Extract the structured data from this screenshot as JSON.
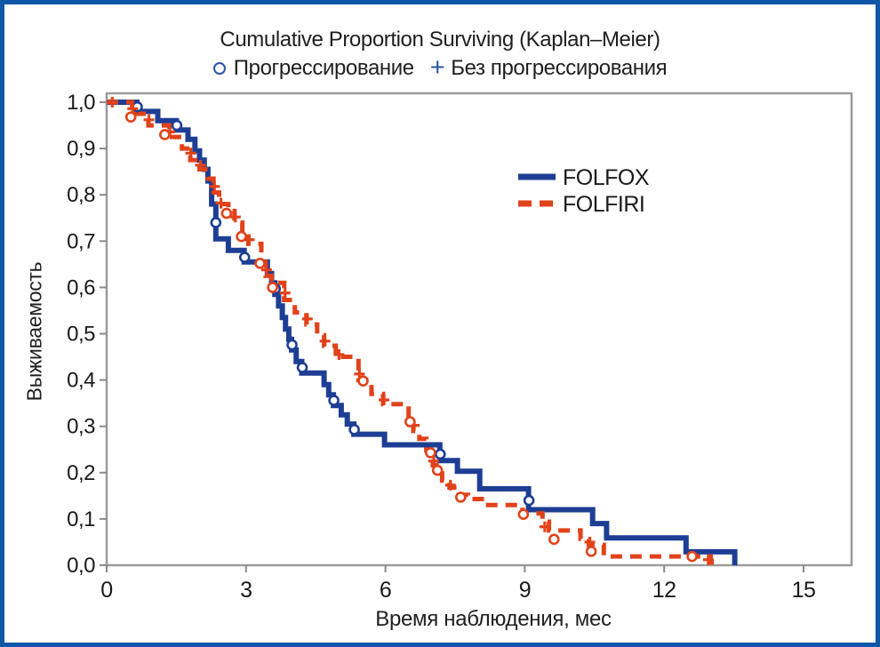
{
  "chart_data": {
    "type": "line",
    "chart_kind": "kaplan-meier-step",
    "title": "Cumulative Proportion Surviving (Kaplan–Meier)",
    "subtitle": {
      "circle_label": "Прогрессирование",
      "plus_glyph": "+",
      "plus_label": "Без прогрессирования"
    },
    "xlabel": "Время наблюдения, мес",
    "ylabel": "Выживаемость",
    "xlim": [
      0,
      16
    ],
    "ylim": [
      0,
      1.02
    ],
    "grid": false,
    "xticks": [
      {
        "value": 0,
        "label": "0"
      },
      {
        "value": 3,
        "label": "3"
      },
      {
        "value": 6,
        "label": "6"
      },
      {
        "value": 9,
        "label": "9"
      },
      {
        "value": 12,
        "label": "12"
      },
      {
        "value": 15,
        "label": "15"
      }
    ],
    "yticks": [
      {
        "value": 0.0,
        "label": "0,0"
      },
      {
        "value": 0.1,
        "label": "0,1"
      },
      {
        "value": 0.2,
        "label": "0,2"
      },
      {
        "value": 0.3,
        "label": "0,3"
      },
      {
        "value": 0.4,
        "label": "0,4"
      },
      {
        "value": 0.5,
        "label": "0,5"
      },
      {
        "value": 0.6,
        "label": "0,6"
      },
      {
        "value": 0.7,
        "label": "0,7"
      },
      {
        "value": 0.8,
        "label": "0,8"
      },
      {
        "value": 0.9,
        "label": "0,9"
      },
      {
        "value": 1.0,
        "label": "1,0"
      }
    ],
    "legend": {
      "position": "inside-center-top"
    },
    "series": [
      {
        "name": "FOLFOX",
        "color": "#1d3e94",
        "line_style": "solid",
        "end_time": 13.52,
        "steps": [
          [
            0,
            1.0
          ],
          [
            0.65,
            0.98
          ],
          [
            1.1,
            0.96
          ],
          [
            1.5,
            0.94
          ],
          [
            1.75,
            0.92
          ],
          [
            1.9,
            0.895
          ],
          [
            2.0,
            0.875
          ],
          [
            2.1,
            0.855
          ],
          [
            2.18,
            0.83
          ],
          [
            2.26,
            0.78
          ],
          [
            2.35,
            0.705
          ],
          [
            2.62,
            0.68
          ],
          [
            2.96,
            0.655
          ],
          [
            3.46,
            0.63
          ],
          [
            3.55,
            0.61
          ],
          [
            3.62,
            0.585
          ],
          [
            3.7,
            0.56
          ],
          [
            3.78,
            0.535
          ],
          [
            3.85,
            0.51
          ],
          [
            3.92,
            0.488
          ],
          [
            3.98,
            0.465
          ],
          [
            4.08,
            0.44
          ],
          [
            4.2,
            0.415
          ],
          [
            4.68,
            0.39
          ],
          [
            4.78,
            0.368
          ],
          [
            4.88,
            0.345
          ],
          [
            5.05,
            0.325
          ],
          [
            5.18,
            0.305
          ],
          [
            5.32,
            0.283
          ],
          [
            5.98,
            0.26
          ],
          [
            7.17,
            0.226
          ],
          [
            7.55,
            0.203
          ],
          [
            8.03,
            0.165
          ],
          [
            9.08,
            0.12
          ],
          [
            10.46,
            0.09
          ],
          [
            10.76,
            0.059
          ],
          [
            12.47,
            0.029
          ],
          [
            13.52,
            0.0
          ]
        ],
        "markers": {
          "circle": [
            [
              0.66,
              0.99
            ],
            [
              1.51,
              0.95
            ],
            [
              2.35,
              0.74
            ],
            [
              2.97,
              0.665
            ],
            [
              3.63,
              0.597
            ],
            [
              3.99,
              0.476
            ],
            [
              4.21,
              0.427
            ],
            [
              4.89,
              0.356
            ],
            [
              5.33,
              0.293
            ],
            [
              7.18,
              0.24
            ],
            [
              9.09,
              0.14
            ]
          ],
          "plus": []
        }
      },
      {
        "name": "FOLFIRI",
        "color": "#e2421a",
        "line_style": "dashed",
        "end_time": 13.1,
        "steps": [
          [
            0,
            1.0
          ],
          [
            0.55,
            0.975
          ],
          [
            0.9,
            0.95
          ],
          [
            1.35,
            0.925
          ],
          [
            1.62,
            0.9
          ],
          [
            1.8,
            0.875
          ],
          [
            2.0,
            0.855
          ],
          [
            2.18,
            0.835
          ],
          [
            2.3,
            0.805
          ],
          [
            2.42,
            0.78
          ],
          [
            2.62,
            0.765
          ],
          [
            2.75,
            0.74
          ],
          [
            2.92,
            0.715
          ],
          [
            3.05,
            0.694
          ],
          [
            3.33,
            0.655
          ],
          [
            3.42,
            0.625
          ],
          [
            3.55,
            0.61
          ],
          [
            3.82,
            0.573
          ],
          [
            4.05,
            0.546
          ],
          [
            4.3,
            0.52
          ],
          [
            4.53,
            0.497
          ],
          [
            4.68,
            0.474
          ],
          [
            4.93,
            0.45
          ],
          [
            5.42,
            0.4
          ],
          [
            5.7,
            0.37
          ],
          [
            5.95,
            0.348
          ],
          [
            6.5,
            0.317
          ],
          [
            6.6,
            0.29
          ],
          [
            6.73,
            0.273
          ],
          [
            6.88,
            0.248
          ],
          [
            6.95,
            0.235
          ],
          [
            7.02,
            0.216
          ],
          [
            7.1,
            0.198
          ],
          [
            7.22,
            0.183
          ],
          [
            7.38,
            0.168
          ],
          [
            7.58,
            0.152
          ],
          [
            7.78,
            0.143
          ],
          [
            8.13,
            0.13
          ],
          [
            8.95,
            0.112
          ],
          [
            9.38,
            0.094
          ],
          [
            9.52,
            0.075
          ],
          [
            10.2,
            0.057
          ],
          [
            10.38,
            0.044
          ],
          [
            10.7,
            0.019
          ],
          [
            13.0,
            0.006
          ]
        ],
        "markers": {
          "circle": [
            [
              0.52,
              0.968
            ],
            [
              1.25,
              0.93
            ],
            [
              2.58,
              0.76
            ],
            [
              2.9,
              0.71
            ],
            [
              3.3,
              0.652
            ],
            [
              3.57,
              0.6
            ],
            [
              5.52,
              0.398
            ],
            [
              6.53,
              0.31
            ],
            [
              6.97,
              0.243
            ],
            [
              7.12,
              0.205
            ],
            [
              7.62,
              0.147
            ],
            [
              8.97,
              0.11
            ],
            [
              9.63,
              0.056
            ],
            [
              10.43,
              0.03
            ],
            [
              12.6,
              0.019
            ]
          ],
          "plus": [
            [
              0.12,
              1.0
            ],
            [
              0.56,
              0.986
            ],
            [
              0.91,
              0.962
            ],
            [
              1.36,
              0.936
            ],
            [
              1.81,
              0.89
            ],
            [
              2.02,
              0.864
            ],
            [
              2.32,
              0.818
            ],
            [
              2.46,
              0.782
            ],
            [
              2.77,
              0.752
            ],
            [
              3.07,
              0.703
            ],
            [
              3.44,
              0.638
            ],
            [
              3.84,
              0.588
            ],
            [
              4.32,
              0.532
            ],
            [
              4.7,
              0.484
            ],
            [
              5.0,
              0.455
            ],
            [
              5.44,
              0.413
            ],
            [
              5.97,
              0.357
            ],
            [
              6.62,
              0.302
            ],
            [
              7.04,
              0.225
            ],
            [
              7.4,
              0.173
            ],
            [
              9.43,
              0.083
            ],
            [
              10.4,
              0.05
            ],
            [
              12.95,
              0.012
            ]
          ]
        }
      }
    ],
    "colors": {
      "frame_border": "#1057a7",
      "axis_box": "#9b9b9b",
      "tick": "#8a8a8a",
      "text": "#1a1a1a",
      "accent_blue": "#2b55a8",
      "marker_fill": "#ffffff"
    }
  }
}
